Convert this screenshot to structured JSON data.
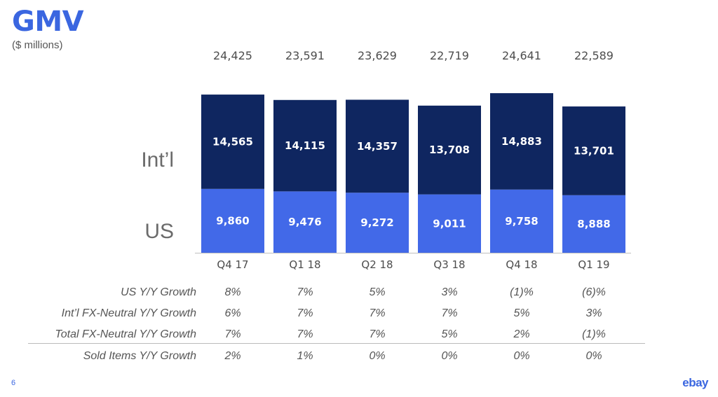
{
  "header": {
    "title": "GMV",
    "subtitle": "($ millions)"
  },
  "segments": {
    "intl_label": "Int’l",
    "us_label": "US"
  },
  "chart_data": {
    "type": "bar",
    "stacked": true,
    "categories": [
      "Q4 17",
      "Q1 18",
      "Q2 18",
      "Q3 18",
      "Q4 18",
      "Q1 19"
    ],
    "series": [
      {
        "name": "US",
        "values": [
          9860,
          9476,
          9272,
          9011,
          9758,
          8888
        ],
        "labels": [
          "9,860",
          "9,476",
          "9,272",
          "9,011",
          "9,758",
          "8,888"
        ]
      },
      {
        "name": "Int’l",
        "values": [
          14565,
          14115,
          14357,
          13708,
          14883,
          13701
        ],
        "labels": [
          "14,565",
          "14,115",
          "14,357",
          "13,708",
          "14,883",
          "13,701"
        ]
      }
    ],
    "totals": [
      24425,
      23591,
      23629,
      22719,
      24641,
      22589
    ],
    "total_labels": [
      "24,425",
      "23,591",
      "23,629",
      "22,719",
      "24,641",
      "22,589"
    ],
    "ylim": [
      0,
      25000
    ],
    "colors": {
      "US": "#4269e8",
      "Int’l": "#0f2660"
    }
  },
  "metrics": [
    {
      "label": "US Y/Y Growth",
      "values": [
        "8%",
        "7%",
        "5%",
        "3%",
        "(1)%",
        "(6)%"
      ]
    },
    {
      "label": "Int’l FX-Neutral Y/Y Growth",
      "values": [
        "6%",
        "7%",
        "7%",
        "7%",
        "5%",
        "3%"
      ]
    },
    {
      "label": "Total FX-Neutral Y/Y Growth",
      "values": [
        "7%",
        "7%",
        "7%",
        "5%",
        "2%",
        "(1)%"
      ]
    },
    {
      "label": "Sold Items Y/Y Growth",
      "values": [
        "2%",
        "1%",
        "0%",
        "0%",
        "0%",
        "0%"
      ]
    }
  ],
  "footer": {
    "page_number": "6",
    "logo_text": "ebay"
  },
  "colors": {
    "accent": "#3a66e0"
  }
}
